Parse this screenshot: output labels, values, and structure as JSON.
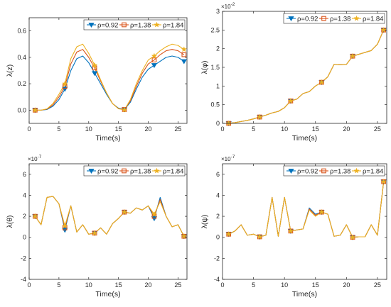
{
  "series_style": [
    {
      "name": "ρ=0.92",
      "color": "#0072BD",
      "marker": "triangle-down"
    },
    {
      "name": "ρ=1.38",
      "color": "#D95319",
      "marker": "square"
    },
    {
      "name": "ρ=1.84",
      "color": "#EDB120",
      "marker": "star"
    }
  ],
  "chart_data": [
    {
      "type": "line",
      "ylabel": "λ(z)",
      "xlabel": "Time(s)",
      "xlim": [
        0,
        26.5
      ],
      "ylim": [
        -0.1,
        0.7
      ],
      "xticks": [
        0,
        5,
        10,
        15,
        20,
        25
      ],
      "yticks": [
        0,
        0.2,
        0.4,
        0.6
      ],
      "ytick_labels": [
        "0.0",
        "0.2",
        "0.4",
        "0.6"
      ],
      "y_exponent": "",
      "legend_position": "top-right",
      "markers_at": [
        1,
        6,
        11,
        16,
        21,
        26
      ],
      "x": [
        1,
        2,
        3,
        4,
        5,
        6,
        7,
        8,
        9,
        10,
        11,
        12,
        13,
        14,
        15,
        16,
        17,
        18,
        19,
        20,
        21,
        22,
        23,
        24,
        25,
        26
      ],
      "series": [
        {
          "name": "ρ=0.92",
          "values": [
            0,
            0,
            0.005,
            0.03,
            0.08,
            0.16,
            0.3,
            0.39,
            0.41,
            0.36,
            0.28,
            0.2,
            0.12,
            0.05,
            0.015,
            0.005,
            0.06,
            0.16,
            0.25,
            0.31,
            0.34,
            0.37,
            0.4,
            0.41,
            0.4,
            0.37
          ]
        },
        {
          "name": "ρ=1.38",
          "values": [
            0,
            0,
            0.008,
            0.04,
            0.1,
            0.18,
            0.35,
            0.44,
            0.46,
            0.4,
            0.32,
            0.22,
            0.13,
            0.05,
            0.012,
            0.005,
            0.07,
            0.18,
            0.28,
            0.35,
            0.38,
            0.42,
            0.45,
            0.46,
            0.45,
            0.42
          ]
        },
        {
          "name": "ρ=1.84",
          "values": [
            0,
            0,
            0.01,
            0.05,
            0.12,
            0.2,
            0.39,
            0.48,
            0.5,
            0.43,
            0.34,
            0.23,
            0.13,
            0.05,
            0.01,
            0.003,
            0.08,
            0.2,
            0.3,
            0.38,
            0.41,
            0.45,
            0.48,
            0.5,
            0.49,
            0.46
          ]
        }
      ]
    },
    {
      "type": "line",
      "ylabel": "λ(φ)",
      "xlabel": "Time(s)",
      "xlim": [
        0,
        26.5
      ],
      "ylim": [
        0,
        0.03
      ],
      "xticks": [
        0,
        5,
        10,
        15,
        20,
        25
      ],
      "yticks": [
        0,
        0.005,
        0.01,
        0.015,
        0.02,
        0.025,
        0.03
      ],
      "ytick_labels": [
        "0",
        "0.5",
        "1",
        "1.5",
        "2",
        "2.5",
        "3"
      ],
      "y_exponent": "10^-2",
      "legend_position": "top-right",
      "markers_at": [
        1,
        6,
        11,
        16,
        21,
        26
      ],
      "x": [
        1,
        2,
        3,
        4,
        5,
        6,
        7,
        8,
        9,
        10,
        11,
        12,
        13,
        14,
        15,
        16,
        17,
        18,
        19,
        20,
        21,
        22,
        23,
        24,
        25,
        26
      ],
      "series": [
        {
          "name": "ρ=0.92",
          "values": [
            0,
            0.0002,
            0.0005,
            0.0008,
            0.0012,
            0.0017,
            0.0022,
            0.0028,
            0.0032,
            0.0042,
            0.006,
            0.0065,
            0.008,
            0.0085,
            0.01,
            0.011,
            0.0125,
            0.0158,
            0.0157,
            0.0158,
            0.018,
            0.0185,
            0.019,
            0.0195,
            0.0212,
            0.025
          ]
        },
        {
          "name": "ρ=1.38",
          "values": [
            0,
            0.0002,
            0.0005,
            0.0008,
            0.0012,
            0.0017,
            0.0022,
            0.0028,
            0.0032,
            0.0042,
            0.006,
            0.0065,
            0.008,
            0.0085,
            0.01,
            0.011,
            0.0125,
            0.0158,
            0.0157,
            0.0158,
            0.018,
            0.0185,
            0.019,
            0.0195,
            0.0212,
            0.025
          ]
        },
        {
          "name": "ρ=1.84",
          "values": [
            0,
            0.0002,
            0.0005,
            0.0008,
            0.0012,
            0.0017,
            0.0022,
            0.0028,
            0.0032,
            0.0042,
            0.006,
            0.0065,
            0.008,
            0.0085,
            0.01,
            0.011,
            0.0125,
            0.0158,
            0.0157,
            0.0158,
            0.018,
            0.0185,
            0.019,
            0.0195,
            0.0212,
            0.025
          ]
        }
      ]
    },
    {
      "type": "line",
      "ylabel": "λ(θ)",
      "xlabel": "Time(s)",
      "xlim": [
        0,
        26.5
      ],
      "ylim": [
        -4e-07,
        7e-07
      ],
      "xticks": [
        0,
        5,
        10,
        15,
        20,
        25
      ],
      "yticks": [
        -4e-07,
        -2e-07,
        0,
        2e-07,
        4e-07,
        6e-07
      ],
      "ytick_labels": [
        "-4",
        "-2",
        "0",
        "2",
        "4",
        "6"
      ],
      "y_exponent": "10^-7",
      "legend_position": "top-right",
      "markers_at": [
        1,
        6,
        11,
        16,
        21,
        26
      ],
      "x": [
        1,
        2,
        3,
        4,
        5,
        6,
        7,
        8,
        9,
        10,
        11,
        12,
        13,
        14,
        15,
        16,
        17,
        18,
        19,
        20,
        21,
        22,
        23,
        24,
        25,
        26
      ],
      "series": [
        {
          "name": "ρ=0.92",
          "values": [
            2e-07,
            1.2e-07,
            3.8e-07,
            3.9e-07,
            3.2e-07,
            7e-08,
            3e-07,
            5e-08,
            1.2e-07,
            3e-08,
            4e-08,
            9e-08,
            3e-08,
            1.3e-07,
            1.8e-07,
            2.4e-07,
            2.3e-07,
            2.8e-07,
            2.6e-07,
            3e-07,
            1.8e-07,
            3.8e-07,
            2e-07,
            1e-07,
            1.2e-07,
            1e-08
          ]
        },
        {
          "name": "ρ=1.38",
          "values": [
            2e-07,
            1.2e-07,
            3.8e-07,
            3.9e-07,
            3.2e-07,
            9e-08,
            3e-07,
            5e-08,
            1.2e-07,
            3e-08,
            4e-08,
            9e-08,
            3e-08,
            1.3e-07,
            1.8e-07,
            2.4e-07,
            2.3e-07,
            2.8e-07,
            2.6e-07,
            3e-07,
            2e-07,
            3.6e-07,
            2e-07,
            1e-07,
            1.2e-07,
            1e-08
          ]
        },
        {
          "name": "ρ=1.84",
          "values": [
            2e-07,
            1.2e-07,
            3.8e-07,
            3.9e-07,
            3.2e-07,
            1.1e-07,
            3e-07,
            5e-08,
            1.2e-07,
            3e-08,
            4e-08,
            9e-08,
            3e-08,
            1.3e-07,
            1.8e-07,
            2.4e-07,
            2.3e-07,
            2.8e-07,
            2.6e-07,
            3e-07,
            2.2e-07,
            3.4e-07,
            2e-07,
            1e-07,
            1.2e-07,
            1e-08
          ]
        }
      ]
    },
    {
      "type": "line",
      "ylabel": "λ(ψ)",
      "xlabel": "Time(s)",
      "xlim": [
        0,
        26.5
      ],
      "ylim": [
        -4e-07,
        7e-07
      ],
      "xticks": [
        0,
        5,
        10,
        15,
        20,
        25
      ],
      "yticks": [
        -4e-07,
        -2e-07,
        0,
        2e-07,
        4e-07,
        6e-07
      ],
      "ytick_labels": [
        "-4",
        "-2",
        "0",
        "2",
        "4",
        "6"
      ],
      "y_exponent": "10^-7",
      "legend_position": "top-right",
      "markers_at": [
        1,
        6,
        11,
        16,
        21,
        26
      ],
      "x": [
        1,
        2,
        3,
        4,
        5,
        6,
        7,
        8,
        9,
        10,
        11,
        12,
        13,
        14,
        15,
        16,
        17,
        18,
        19,
        20,
        21,
        22,
        23,
        24,
        25,
        26
      ],
      "series": [
        {
          "name": "ρ=0.92",
          "values": [
            3e-08,
            6e-08,
            1.2e-07,
            2e-08,
            3e-08,
            5e-09,
            2e-08,
            3.8e-07,
            1e-08,
            3.8e-07,
            6e-08,
            7e-08,
            8e-08,
            2.8e-07,
            2.2e-07,
            2.4e-07,
            2.2e-07,
            1e-08,
            2e-08,
            1.2e-07,
            0.0,
            5e-09,
            5e-09,
            1.2e-07,
            2e-08,
            5.3e-07
          ]
        },
        {
          "name": "ρ=1.38",
          "values": [
            3e-08,
            6e-08,
            1.2e-07,
            2e-08,
            3e-08,
            5e-09,
            2e-08,
            3.8e-07,
            1e-08,
            3.8e-07,
            6e-08,
            7e-08,
            8e-08,
            2.7e-07,
            2.1e-07,
            2.4e-07,
            2.2e-07,
            1e-08,
            2e-08,
            1.2e-07,
            0.0,
            5e-09,
            5e-09,
            1.2e-07,
            2e-08,
            5.3e-07
          ]
        },
        {
          "name": "ρ=1.84",
          "values": [
            3e-08,
            6e-08,
            1.2e-07,
            2e-08,
            3e-08,
            5e-09,
            2e-08,
            3.8e-07,
            1e-08,
            3.8e-07,
            6e-08,
            7e-08,
            8e-08,
            2.6e-07,
            2e-07,
            2.4e-07,
            2.2e-07,
            1e-08,
            2e-08,
            1.2e-07,
            0.0,
            5e-09,
            5e-09,
            1.2e-07,
            2e-08,
            5.3e-07
          ]
        }
      ]
    }
  ]
}
